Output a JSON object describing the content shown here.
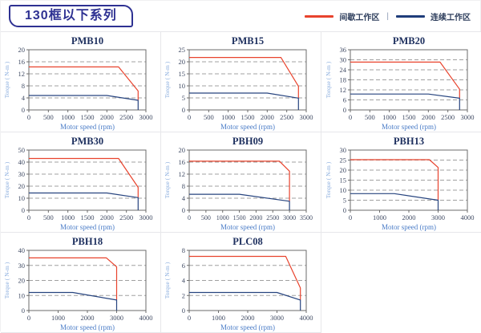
{
  "header": {
    "title": "130框以下系列"
  },
  "legend": {
    "intermittent_label": "间歇工作区",
    "separator": "|",
    "continuous_label": "连续工作区"
  },
  "colors": {
    "intermittent": "#e8432d",
    "continuous": "#27447f",
    "legend_continuous": "#1f3d7a",
    "chart_title": "#1d2f5e",
    "tick_label": "#3f4a63",
    "xlabel": "#4a7cc7",
    "ylabel": "#8aadde",
    "gridline": "#a0a0a0",
    "plot_border": "#6b6b6b",
    "header_accent": "#2e3192"
  },
  "chart_data": [
    {
      "type": "line",
      "title": "PMB10",
      "xlabel": "Motor speed (rpm)",
      "ylabel": "Torque ( N-m )",
      "xlim": [
        0,
        3000
      ],
      "xticks": [
        0,
        500,
        1000,
        1500,
        2000,
        2500,
        3000
      ],
      "ylim": [
        0,
        20
      ],
      "yticks": [
        0,
        4,
        8,
        12,
        16,
        20
      ],
      "series": [
        {
          "name": "间歇工作区",
          "zone": "intermittent",
          "points": [
            [
              0,
              14.3
            ],
            [
              2300,
              14.3
            ],
            [
              2800,
              6.3
            ],
            [
              2800,
              3.2
            ]
          ]
        },
        {
          "name": "连续工作区",
          "zone": "continuous",
          "points": [
            [
              0,
              4.8
            ],
            [
              2000,
              4.8
            ],
            [
              2800,
              3.2
            ],
            [
              2800,
              0
            ]
          ]
        }
      ]
    },
    {
      "type": "line",
      "title": "PMB15",
      "xlabel": "Motor speed (rpm)",
      "ylabel": "Torque ( N-m )",
      "xlim": [
        0,
        3000
      ],
      "xticks": [
        0,
        500,
        1000,
        1500,
        2000,
        2500,
        3000
      ],
      "ylim": [
        0,
        25
      ],
      "yticks": [
        0,
        5,
        10,
        15,
        20,
        25
      ],
      "series": [
        {
          "name": "间歇工作区",
          "zone": "intermittent",
          "points": [
            [
              0,
              21.8
            ],
            [
              2350,
              21.8
            ],
            [
              2800,
              9.8
            ],
            [
              2800,
              4.9
            ]
          ]
        },
        {
          "name": "连续工作区",
          "zone": "continuous",
          "points": [
            [
              0,
              7
            ],
            [
              2000,
              7
            ],
            [
              2800,
              4.9
            ],
            [
              2800,
              0
            ]
          ]
        }
      ]
    },
    {
      "type": "line",
      "title": "PMB20",
      "xlabel": "Motor speed (rpm)",
      "ylabel": "Torque ( N-m )",
      "xlim": [
        0,
        3000
      ],
      "xticks": [
        0,
        500,
        1000,
        1500,
        2000,
        2500,
        3000
      ],
      "ylim": [
        0,
        36
      ],
      "yticks": [
        0,
        6,
        12,
        18,
        24,
        30,
        36
      ],
      "series": [
        {
          "name": "间歇工作区",
          "zone": "intermittent",
          "points": [
            [
              0,
              28.6
            ],
            [
              2300,
              28.6
            ],
            [
              2800,
              12.4
            ],
            [
              2800,
              7
            ]
          ]
        },
        {
          "name": "连续工作区",
          "zone": "continuous",
          "points": [
            [
              0,
              9.5
            ],
            [
              2000,
              9.5
            ],
            [
              2800,
              7
            ],
            [
              2800,
              0
            ]
          ]
        }
      ]
    },
    {
      "type": "line",
      "title": "PMB30",
      "xlabel": "Motor speed (rpm)",
      "ylabel": "Torque ( N-m )",
      "xlim": [
        0,
        3000
      ],
      "xticks": [
        0,
        500,
        1000,
        1500,
        2000,
        2500,
        3000
      ],
      "ylim": [
        0,
        50
      ],
      "yticks": [
        0,
        10,
        20,
        30,
        40,
        50
      ],
      "series": [
        {
          "name": "间歇工作区",
          "zone": "intermittent",
          "points": [
            [
              0,
              43
            ],
            [
              2300,
              43
            ],
            [
              2800,
              19
            ],
            [
              2800,
              10.5
            ]
          ]
        },
        {
          "name": "连续工作区",
          "zone": "continuous",
          "points": [
            [
              0,
              14.3
            ],
            [
              2000,
              14.3
            ],
            [
              2800,
              10.5
            ],
            [
              2800,
              0
            ]
          ]
        }
      ]
    },
    {
      "type": "line",
      "title": "PBH09",
      "xlabel": "Motor speed (rpm)",
      "ylabel": "Torque ( N-m )",
      "xlim": [
        0,
        3500
      ],
      "xticks": [
        0,
        500,
        1000,
        1500,
        2000,
        2500,
        3000,
        3500
      ],
      "ylim": [
        0,
        20
      ],
      "yticks": [
        0,
        4,
        8,
        12,
        16,
        20
      ],
      "series": [
        {
          "name": "间歇工作区",
          "zone": "intermittent",
          "points": [
            [
              0,
              16.3
            ],
            [
              2700,
              16.3
            ],
            [
              3000,
              13
            ],
            [
              3000,
              3
            ]
          ]
        },
        {
          "name": "连续工作区",
          "zone": "continuous",
          "points": [
            [
              0,
              5.3
            ],
            [
              1500,
              5.3
            ],
            [
              3000,
              3
            ],
            [
              3000,
              0
            ]
          ]
        }
      ]
    },
    {
      "type": "line",
      "title": "PBH13",
      "xlabel": "Motor speed (rpm)",
      "ylabel": "Torque ( N-m )",
      "xlim": [
        0,
        4000
      ],
      "xticks": [
        0,
        1000,
        2000,
        3000,
        4000
      ],
      "ylim": [
        0,
        30
      ],
      "yticks": [
        0,
        5,
        10,
        15,
        20,
        25,
        30
      ],
      "series": [
        {
          "name": "间歇工作区",
          "zone": "intermittent",
          "points": [
            [
              0,
              25.2
            ],
            [
              2700,
              25.2
            ],
            [
              3000,
              21.3
            ],
            [
              3000,
              5
            ]
          ]
        },
        {
          "name": "连续工作区",
          "zone": "continuous",
          "points": [
            [
              0,
              8.3
            ],
            [
              1500,
              8.3
            ],
            [
              3000,
              5
            ],
            [
              3000,
              0
            ]
          ]
        }
      ]
    },
    {
      "type": "line",
      "title": "PBH18",
      "xlabel": "Motor speed (rpm)",
      "ylabel": "Torque ( N-m )",
      "xlim": [
        0,
        4000
      ],
      "xticks": [
        0,
        1000,
        2000,
        3000,
        4000
      ],
      "ylim": [
        0,
        40
      ],
      "yticks": [
        0,
        10,
        20,
        30,
        40
      ],
      "series": [
        {
          "name": "间歇工作区",
          "zone": "intermittent",
          "points": [
            [
              0,
              35
            ],
            [
              2650,
              35
            ],
            [
              3000,
              29
            ],
            [
              3000,
              7
            ]
          ]
        },
        {
          "name": "连续工作区",
          "zone": "continuous",
          "points": [
            [
              0,
              12
            ],
            [
              1500,
              12
            ],
            [
              3000,
              7
            ],
            [
              3000,
              0
            ]
          ]
        }
      ]
    },
    {
      "type": "line",
      "title": "PLC08",
      "xlabel": "Motor speed (rpm)",
      "ylabel": "Torque ( N-m )",
      "xlim": [
        0,
        4000
      ],
      "xticks": [
        0,
        1000,
        2000,
        3000,
        4000
      ],
      "ylim": [
        0,
        8
      ],
      "yticks": [
        0,
        2,
        4,
        6,
        8
      ],
      "series": [
        {
          "name": "间歇工作区",
          "zone": "intermittent",
          "points": [
            [
              0,
              7.2
            ],
            [
              3300,
              7.2
            ],
            [
              3800,
              3
            ],
            [
              3800,
              1.4
            ]
          ]
        },
        {
          "name": "连续工作区",
          "zone": "continuous",
          "points": [
            [
              0,
              2.4
            ],
            [
              3000,
              2.4
            ],
            [
              3800,
              1.4
            ],
            [
              3800,
              0
            ]
          ]
        }
      ]
    }
  ]
}
